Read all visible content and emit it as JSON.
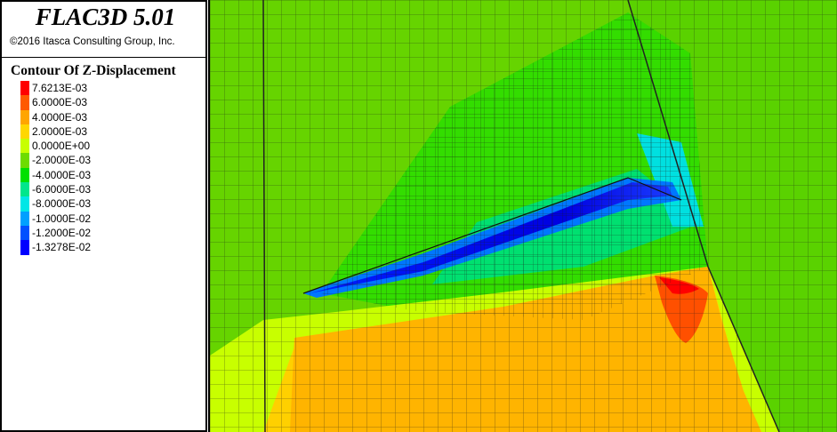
{
  "header": {
    "app_title": "FLAC3D 5.01",
    "copyright": "©2016 Itasca Consulting Group, Inc."
  },
  "legend": {
    "title": "Contour Of Z-Displacement",
    "items": [
      {
        "label": "7.6213E-03",
        "color": "#ff0000"
      },
      {
        "label": "6.0000E-03",
        "color": "#ff5a00"
      },
      {
        "label": "4.0000E-03",
        "color": "#ffa500"
      },
      {
        "label": "2.0000E-03",
        "color": "#ffd700"
      },
      {
        "label": "0.0000E+00",
        "color": "#c8ff00"
      },
      {
        "label": "-2.0000E-03",
        "color": "#6edc00"
      },
      {
        "label": "-4.0000E-03",
        "color": "#00e000"
      },
      {
        "label": "-6.0000E-03",
        "color": "#00e68c"
      },
      {
        "label": "-8.0000E-03",
        "color": "#00e6e6"
      },
      {
        "label": "-1.0000E-02",
        "color": "#00a0ff"
      },
      {
        "label": "-1.2000E-02",
        "color": "#0050ff"
      },
      {
        "label": "-1.3278E-02",
        "color": "#0000ff"
      }
    ]
  },
  "viewport": {
    "content": "3D contour plot of FLAC3D mesh model showing Z-displacement"
  }
}
